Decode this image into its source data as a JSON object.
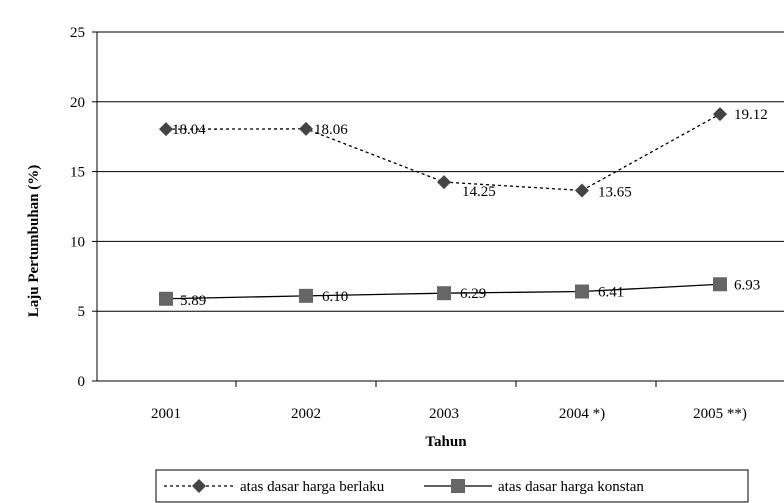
{
  "chart_data": {
    "type": "line",
    "categories": [
      "2001",
      "2002",
      "2003",
      "2004 *)",
      "2005 **)"
    ],
    "ylabel": "Laju Pertumbuhan (%)",
    "xlabel": "Tahun",
    "ylim": [
      0,
      25
    ],
    "yticks": [
      "0",
      "5",
      "10",
      "15",
      "20",
      "25"
    ],
    "grid": "horizontal",
    "legend_position": "bottom",
    "series": [
      {
        "name": "atas dasar harga berlaku",
        "values": [
          18.04,
          18.06,
          14.25,
          13.65,
          19.12
        ],
        "labels": [
          "18.04",
          "18.06",
          "14.25",
          "13.65",
          "19.12"
        ],
        "marker": "diamond",
        "line": "dotted",
        "color": "#000000",
        "marker_color": "#444444"
      },
      {
        "name": "atas dasar harga konstan",
        "values": [
          5.89,
          6.1,
          6.29,
          6.41,
          6.93
        ],
        "labels": [
          "5.89",
          "6.10",
          "6.29",
          "6.41",
          "6.93"
        ],
        "marker": "square",
        "line": "solid",
        "color": "#000000",
        "marker_color": "#666666"
      }
    ]
  }
}
